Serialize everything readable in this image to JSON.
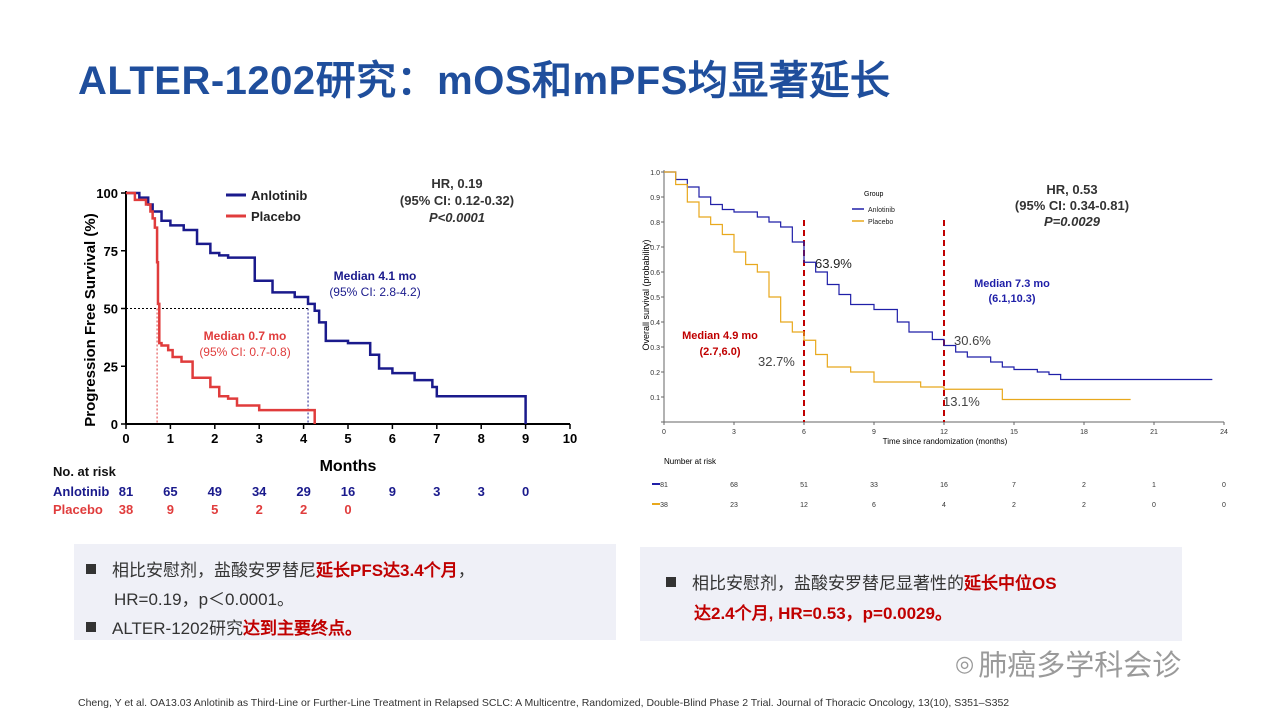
{
  "title": "ALTER-1202研究：mOS和mPFS均显著延长",
  "chart_data": [
    {
      "type": "line",
      "ylabel": "Progression Free Survival (%)",
      "xlabel": "Months",
      "xlim": [
        0,
        10
      ],
      "ylim": [
        0,
        100
      ],
      "x_ticks": [
        "0",
        "1",
        "2",
        "3",
        "4",
        "5",
        "6",
        "7",
        "8",
        "9",
        "10"
      ],
      "y_ticks": [
        "0",
        "25",
        "50",
        "75",
        "100"
      ],
      "legend": [
        "Anlotinib",
        "Placebo"
      ],
      "legend_position": "top",
      "hr_lines": [
        "HR, 0.19",
        "(95% CI: 0.12-0.32)",
        "P<0.0001"
      ],
      "median_anlotinib": [
        "Median  4.1 mo",
        "(95% CI: 2.8-4.2)"
      ],
      "median_placebo": [
        "Median  0.7 mo",
        "(95% CI: 0.7-0.8)"
      ],
      "median_x": {
        "anlotinib": 4.1,
        "placebo": 0.7
      },
      "series": [
        {
          "name": "Anlotinib",
          "color": "#1a1a8c",
          "x": [
            0,
            0.3,
            0.5,
            0.6,
            0.8,
            1.0,
            1.3,
            1.6,
            1.9,
            2.1,
            2.3,
            2.8,
            2.9,
            3.3,
            3.8,
            4.1,
            4.25,
            4.35,
            4.5,
            5.0,
            5.5,
            5.7,
            6.0,
            6.5,
            6.9,
            7.0,
            8.3,
            9.0,
            9.0
          ],
          "y": [
            100,
            98,
            95,
            92,
            88,
            86,
            84,
            78,
            74,
            73,
            72,
            72,
            62,
            57,
            55,
            52,
            49,
            44,
            36,
            35,
            30,
            24,
            22,
            19,
            16,
            12,
            12,
            12,
            0
          ]
        },
        {
          "name": "Placebo",
          "color": "#e03c3c",
          "x": [
            0,
            0.2,
            0.45,
            0.55,
            0.6,
            0.65,
            0.7,
            0.72,
            0.75,
            0.8,
            0.85,
            0.95,
            1.05,
            1.25,
            1.5,
            1.9,
            2.1,
            2.3,
            2.5,
            2.8,
            3.0,
            4.2,
            4.25
          ],
          "y": [
            100,
            97,
            95,
            92,
            89,
            85,
            70,
            52,
            35,
            34,
            34,
            32,
            29,
            27,
            20,
            16,
            12,
            11,
            8,
            8,
            6,
            6,
            0
          ]
        }
      ],
      "risk_table": {
        "title": "No. at risk",
        "rows": [
          {
            "name": "Anlotinib",
            "color": "#1a1a8c",
            "values": [
              "81",
              "65",
              "49",
              "34",
              "29",
              "16",
              "9",
              "3",
              "3",
              "0"
            ]
          },
          {
            "name": "Placebo",
            "color": "#e03c3c",
            "values": [
              "38",
              "9",
              "5",
              "2",
              "2",
              "0"
            ]
          }
        ]
      }
    },
    {
      "type": "line",
      "ylabel": "Overall survival (probability)",
      "xlabel": "Time since randomization (months)",
      "xlim": [
        0,
        24
      ],
      "ylim": [
        0,
        1.0
      ],
      "x_ticks": [
        "0",
        "3",
        "6",
        "9",
        "12",
        "15",
        "18",
        "21",
        "24"
      ],
      "y_ticks": [
        "0",
        "0.1",
        "0.2",
        "0.3",
        "0.4",
        "0.5",
        "0.6",
        "0.7",
        "0.8",
        "0.9",
        "1.0"
      ],
      "legend_title": "Group",
      "legend": [
        "Anlotinib",
        "Placebo"
      ],
      "hr_lines": [
        "HR, 0.53",
        "(95% CI: 0.34-0.81)",
        "P=0.0029"
      ],
      "median_anlotinib": [
        "Median  7.3 mo",
        "(6.1,10.3)"
      ],
      "median_placebo": [
        "Median  4.9 mo",
        "(2.7,6.0)"
      ],
      "landmark_x": [
        6,
        12
      ],
      "landmark_labels": {
        "anl6": "63.9%",
        "pla6": "32.7%",
        "anl12": "30.6%",
        "pla12": "13.1%"
      },
      "series": [
        {
          "name": "Anlotinib",
          "color": "#1f1fa8",
          "x": [
            0,
            0.5,
            1.0,
            1.5,
            2.0,
            2.5,
            3.0,
            4.0,
            4.5,
            5.0,
            5.5,
            6.0,
            6.5,
            7.0,
            7.5,
            8.0,
            9.0,
            10.0,
            10.5,
            11.5,
            12.0,
            12.5,
            13.0,
            14.0,
            14.5,
            15.0,
            16.0,
            16.5,
            17.0,
            20.0,
            23.5
          ],
          "y": [
            1.0,
            0.97,
            0.94,
            0.9,
            0.87,
            0.85,
            0.84,
            0.82,
            0.8,
            0.78,
            0.72,
            0.639,
            0.6,
            0.55,
            0.51,
            0.47,
            0.45,
            0.4,
            0.36,
            0.33,
            0.306,
            0.28,
            0.26,
            0.24,
            0.22,
            0.21,
            0.2,
            0.19,
            0.17,
            0.17,
            0.17
          ]
        },
        {
          "name": "Placebo",
          "color": "#e8a81c",
          "x": [
            0,
            0.5,
            1.0,
            1.5,
            2.0,
            2.5,
            3.0,
            3.5,
            4.0,
            4.5,
            5.0,
            5.5,
            6.0,
            6.5,
            7.0,
            8.0,
            9.0,
            10.0,
            11.0,
            12.0,
            13.0,
            14.0,
            14.5,
            16.0,
            20.0
          ],
          "y": [
            1.0,
            0.95,
            0.88,
            0.82,
            0.79,
            0.75,
            0.68,
            0.63,
            0.6,
            0.5,
            0.4,
            0.36,
            0.327,
            0.27,
            0.22,
            0.2,
            0.16,
            0.16,
            0.14,
            0.131,
            0.131,
            0.131,
            0.09,
            0.09,
            0.09
          ]
        }
      ],
      "risk_table": {
        "title": "Number at risk",
        "rows": [
          {
            "name": "Anlotinib",
            "color": "#1f1fa8",
            "values": [
              "81",
              "68",
              "51",
              "33",
              "16",
              "7",
              "2",
              "1",
              "0"
            ]
          },
          {
            "name": "Placebo",
            "color": "#e8a81c",
            "values": [
              "38",
              "23",
              "12",
              "6",
              "4",
              "2",
              "2",
              "0",
              "0"
            ]
          }
        ]
      }
    }
  ],
  "box1": {
    "line1_pre": "相比安慰剂，盐酸安罗替尼",
    "line1_hl": "延长PFS达3.4个月",
    "line1_post": "，",
    "line2": "HR=0.19，p＜0.0001。",
    "line3_pre": "ALTER-1202研究",
    "line3_hl": "达到主要终点。"
  },
  "box2": {
    "line1_pre": "相比安慰剂，盐酸安罗替尼显著性的",
    "line1_hl": "延长中位OS",
    "line2_hl": "达2.4个月, HR=0.53，p=0.0029。"
  },
  "reference": "Cheng, Y et al.  OA13.03 Anlotinib as Third-Line or Further-Line Treatment in Relapsed SCLC: A Multicentre, Randomized, Double-Blind Phase 2 Trial. Journal of Thoracic Oncology, 13(10), S351–S352",
  "watermark": "肺癌多学科会诊"
}
